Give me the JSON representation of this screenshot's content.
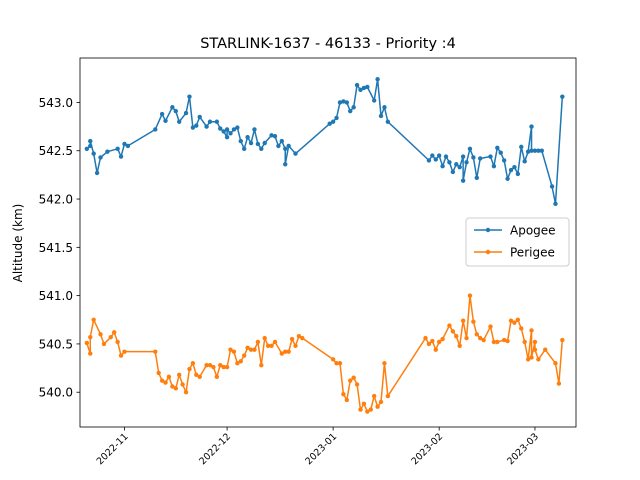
{
  "chart_data": {
    "type": "line",
    "title": "STARLINK-1637 - 46133 - Priority :4",
    "xlabel": "",
    "ylabel": "Altitude (km)",
    "xlim": [
      "2022-10-19",
      "2023-03-13"
    ],
    "ylim": [
      539.64,
      543.46
    ],
    "yticks": [
      540.0,
      540.5,
      541.0,
      541.5,
      542.0,
      542.5,
      543.0
    ],
    "ytick_labels": [
      "540.0",
      "540.5",
      "541.0",
      "541.5",
      "542.0",
      "542.5",
      "543.0"
    ],
    "xticks": [
      "2022-11-01",
      "2022-12-01",
      "2023-01-01",
      "2023-02-01",
      "2023-03-01"
    ],
    "xtick_labels": [
      "2022-11",
      "2022-12",
      "2023-01",
      "2023-02",
      "2023-03"
    ],
    "grid": false,
    "legend_position": "center-right",
    "series": [
      {
        "name": "Apogee",
        "color": "#1f77b4",
        "marker": "circle",
        "points": [
          [
            "2022-10-21",
            542.52
          ],
          [
            "2022-10-22",
            542.55
          ],
          [
            "2022-10-22",
            542.6
          ],
          [
            "2022-10-23",
            542.47
          ],
          [
            "2022-10-24",
            542.27
          ],
          [
            "2022-10-25",
            542.43
          ],
          [
            "2022-10-27",
            542.49
          ],
          [
            "2022-10-30",
            542.52
          ],
          [
            "2022-10-31",
            542.44
          ],
          [
            "2022-11-01",
            542.57
          ],
          [
            "2022-11-02",
            542.55
          ],
          [
            "2022-11-10",
            542.72
          ],
          [
            "2022-11-12",
            542.88
          ],
          [
            "2022-11-13",
            542.81
          ],
          [
            "2022-11-15",
            542.95
          ],
          [
            "2022-11-16",
            542.91
          ],
          [
            "2022-11-17",
            542.8
          ],
          [
            "2022-11-19",
            542.89
          ],
          [
            "2022-11-20",
            543.06
          ],
          [
            "2022-11-21",
            542.74
          ],
          [
            "2022-11-22",
            542.76
          ],
          [
            "2022-11-23",
            542.85
          ],
          [
            "2022-11-25",
            542.75
          ],
          [
            "2022-11-26",
            542.8
          ],
          [
            "2022-11-28",
            542.8
          ],
          [
            "2022-11-29",
            542.73
          ],
          [
            "2022-11-30",
            542.7
          ],
          [
            "2022-12-01",
            542.64
          ],
          [
            "2022-12-01",
            542.72
          ],
          [
            "2022-12-02",
            542.68
          ],
          [
            "2022-12-03",
            542.72
          ],
          [
            "2022-12-04",
            542.74
          ],
          [
            "2022-12-05",
            542.6
          ],
          [
            "2022-12-06",
            542.52
          ],
          [
            "2022-12-07",
            542.64
          ],
          [
            "2022-12-08",
            542.58
          ],
          [
            "2022-12-09",
            542.72
          ],
          [
            "2022-12-10",
            542.57
          ],
          [
            "2022-12-11",
            542.52
          ],
          [
            "2022-12-12",
            542.58
          ],
          [
            "2022-12-14",
            542.66
          ],
          [
            "2022-12-15",
            542.65
          ],
          [
            "2022-12-16",
            542.55
          ],
          [
            "2022-12-17",
            542.6
          ],
          [
            "2022-12-18",
            542.52
          ],
          [
            "2022-12-18",
            542.36
          ],
          [
            "2022-12-19",
            542.55
          ],
          [
            "2022-12-21",
            542.47
          ],
          [
            "2022-12-31",
            542.78
          ],
          [
            "2023-01-01",
            542.8
          ],
          [
            "2023-01-02",
            542.84
          ],
          [
            "2023-01-03",
            543.0
          ],
          [
            "2023-01-04",
            543.01
          ],
          [
            "2023-01-05",
            543.0
          ],
          [
            "2023-01-06",
            542.91
          ],
          [
            "2023-01-07",
            542.95
          ],
          [
            "2023-01-08",
            543.18
          ],
          [
            "2023-01-09",
            543.13
          ],
          [
            "2023-01-10",
            543.15
          ],
          [
            "2023-01-11",
            543.16
          ],
          [
            "2023-01-13",
            543.02
          ],
          [
            "2023-01-14",
            543.24
          ],
          [
            "2023-01-15",
            542.86
          ],
          [
            "2023-01-16",
            542.95
          ],
          [
            "2023-01-17",
            542.8
          ],
          [
            "2023-01-29",
            542.4
          ],
          [
            "2023-01-30",
            542.45
          ],
          [
            "2023-01-31",
            542.41
          ],
          [
            "2023-02-01",
            542.45
          ],
          [
            "2023-02-02",
            542.34
          ],
          [
            "2023-02-03",
            542.44
          ],
          [
            "2023-02-04",
            542.38
          ],
          [
            "2023-02-05",
            542.28
          ],
          [
            "2023-02-06",
            542.36
          ],
          [
            "2023-02-07",
            542.33
          ],
          [
            "2023-02-08",
            542.44
          ],
          [
            "2023-02-08",
            542.19
          ],
          [
            "2023-02-09",
            542.38
          ],
          [
            "2023-02-10",
            542.52
          ],
          [
            "2023-02-11",
            542.43
          ],
          [
            "2023-02-12",
            542.22
          ],
          [
            "2023-02-13",
            542.42
          ],
          [
            "2023-02-16",
            542.44
          ],
          [
            "2023-02-17",
            542.34
          ],
          [
            "2023-02-18",
            542.53
          ],
          [
            "2023-02-19",
            542.48
          ],
          [
            "2023-02-20",
            542.4
          ],
          [
            "2023-02-21",
            542.21
          ],
          [
            "2023-02-22",
            542.3
          ],
          [
            "2023-02-23",
            542.33
          ],
          [
            "2023-02-24",
            542.26
          ],
          [
            "2023-02-25",
            542.54
          ],
          [
            "2023-02-26",
            542.39
          ],
          [
            "2023-02-27",
            542.49
          ],
          [
            "2023-02-28",
            542.75
          ],
          [
            "2023-02-28",
            542.5
          ],
          [
            "2023-03-01",
            542.5
          ],
          [
            "2023-03-02",
            542.5
          ],
          [
            "2023-03-03",
            542.5
          ],
          [
            "2023-03-06",
            542.13
          ],
          [
            "2023-03-07",
            541.95
          ],
          [
            "2023-03-09",
            543.06
          ]
        ]
      },
      {
        "name": "Perigee",
        "color": "#ff7f0e",
        "marker": "circle",
        "points": [
          [
            "2022-10-21",
            540.51
          ],
          [
            "2022-10-22",
            540.4
          ],
          [
            "2022-10-22",
            540.57
          ],
          [
            "2022-10-23",
            540.75
          ],
          [
            "2022-10-25",
            540.6
          ],
          [
            "2022-10-26",
            540.5
          ],
          [
            "2022-10-28",
            540.57
          ],
          [
            "2022-10-29",
            540.62
          ],
          [
            "2022-10-30",
            540.52
          ],
          [
            "2022-10-31",
            540.38
          ],
          [
            "2022-11-01",
            540.42
          ],
          [
            "2022-11-10",
            540.42
          ],
          [
            "2022-11-11",
            540.2
          ],
          [
            "2022-11-12",
            540.12
          ],
          [
            "2022-11-13",
            540.1
          ],
          [
            "2022-11-14",
            540.16
          ],
          [
            "2022-11-15",
            540.06
          ],
          [
            "2022-11-16",
            540.04
          ],
          [
            "2022-11-17",
            540.18
          ],
          [
            "2022-11-18",
            540.08
          ],
          [
            "2022-11-19",
            540.0
          ],
          [
            "2022-11-20",
            540.24
          ],
          [
            "2022-11-21",
            540.3
          ],
          [
            "2022-11-22",
            540.18
          ],
          [
            "2022-11-23",
            540.16
          ],
          [
            "2022-11-25",
            540.28
          ],
          [
            "2022-11-26",
            540.28
          ],
          [
            "2022-11-27",
            540.26
          ],
          [
            "2022-11-28",
            540.16
          ],
          [
            "2022-11-29",
            540.28
          ],
          [
            "2022-11-30",
            540.26
          ],
          [
            "2022-12-01",
            540.26
          ],
          [
            "2022-12-02",
            540.44
          ],
          [
            "2022-12-03",
            540.42
          ],
          [
            "2022-12-04",
            540.3
          ],
          [
            "2022-12-05",
            540.32
          ],
          [
            "2022-12-06",
            540.38
          ],
          [
            "2022-12-07",
            540.46
          ],
          [
            "2022-12-08",
            540.44
          ],
          [
            "2022-12-09",
            540.44
          ],
          [
            "2022-12-10",
            540.52
          ],
          [
            "2022-12-11",
            540.28
          ],
          [
            "2022-12-12",
            540.56
          ],
          [
            "2022-12-13",
            540.48
          ],
          [
            "2022-12-14",
            540.48
          ],
          [
            "2022-12-15",
            540.52
          ],
          [
            "2022-12-17",
            540.4
          ],
          [
            "2022-12-18",
            540.42
          ],
          [
            "2022-12-19",
            540.42
          ],
          [
            "2022-12-20",
            540.55
          ],
          [
            "2022-12-21",
            540.48
          ],
          [
            "2022-12-22",
            540.58
          ],
          [
            "2022-12-23",
            540.56
          ],
          [
            "2023-01-01",
            540.34
          ],
          [
            "2023-01-02",
            540.3
          ],
          [
            "2023-01-03",
            540.3
          ],
          [
            "2023-01-04",
            539.98
          ],
          [
            "2023-01-05",
            539.92
          ],
          [
            "2023-01-06",
            540.12
          ],
          [
            "2023-01-07",
            540.15
          ],
          [
            "2023-01-08",
            540.08
          ],
          [
            "2023-01-09",
            539.82
          ],
          [
            "2023-01-10",
            539.88
          ],
          [
            "2023-01-11",
            539.8
          ],
          [
            "2023-01-12",
            539.82
          ],
          [
            "2023-01-13",
            539.96
          ],
          [
            "2023-01-14",
            539.85
          ],
          [
            "2023-01-15",
            539.9
          ],
          [
            "2023-01-16",
            540.3
          ],
          [
            "2023-01-17",
            539.96
          ],
          [
            "2023-01-28",
            540.56
          ],
          [
            "2023-01-29",
            540.5
          ],
          [
            "2023-01-30",
            540.53
          ],
          [
            "2023-01-31",
            540.44
          ],
          [
            "2023-02-01",
            540.52
          ],
          [
            "2023-02-02",
            540.55
          ],
          [
            "2023-02-04",
            540.69
          ],
          [
            "2023-02-05",
            540.63
          ],
          [
            "2023-02-06",
            540.58
          ],
          [
            "2023-02-07",
            540.48
          ],
          [
            "2023-02-08",
            540.74
          ],
          [
            "2023-02-09",
            540.56
          ],
          [
            "2023-02-10",
            541.0
          ],
          [
            "2023-02-11",
            540.73
          ],
          [
            "2023-02-12",
            540.6
          ],
          [
            "2023-02-13",
            540.56
          ],
          [
            "2023-02-14",
            540.54
          ],
          [
            "2023-02-16",
            540.68
          ],
          [
            "2023-02-17",
            540.52
          ],
          [
            "2023-02-18",
            540.52
          ],
          [
            "2023-02-20",
            540.54
          ],
          [
            "2023-02-21",
            540.53
          ],
          [
            "2023-02-22",
            540.74
          ],
          [
            "2023-02-23",
            540.72
          ],
          [
            "2023-02-24",
            540.75
          ],
          [
            "2023-02-25",
            540.66
          ],
          [
            "2023-02-26",
            540.52
          ],
          [
            "2023-02-27",
            540.34
          ],
          [
            "2023-02-28",
            540.64
          ],
          [
            "2023-02-28",
            540.36
          ],
          [
            "2023-03-01",
            540.52
          ],
          [
            "2023-03-01",
            540.44
          ],
          [
            "2023-03-02",
            540.34
          ],
          [
            "2023-03-04",
            540.44
          ],
          [
            "2023-03-07",
            540.3
          ],
          [
            "2023-03-08",
            540.09
          ],
          [
            "2023-03-09",
            540.54
          ]
        ]
      }
    ]
  }
}
